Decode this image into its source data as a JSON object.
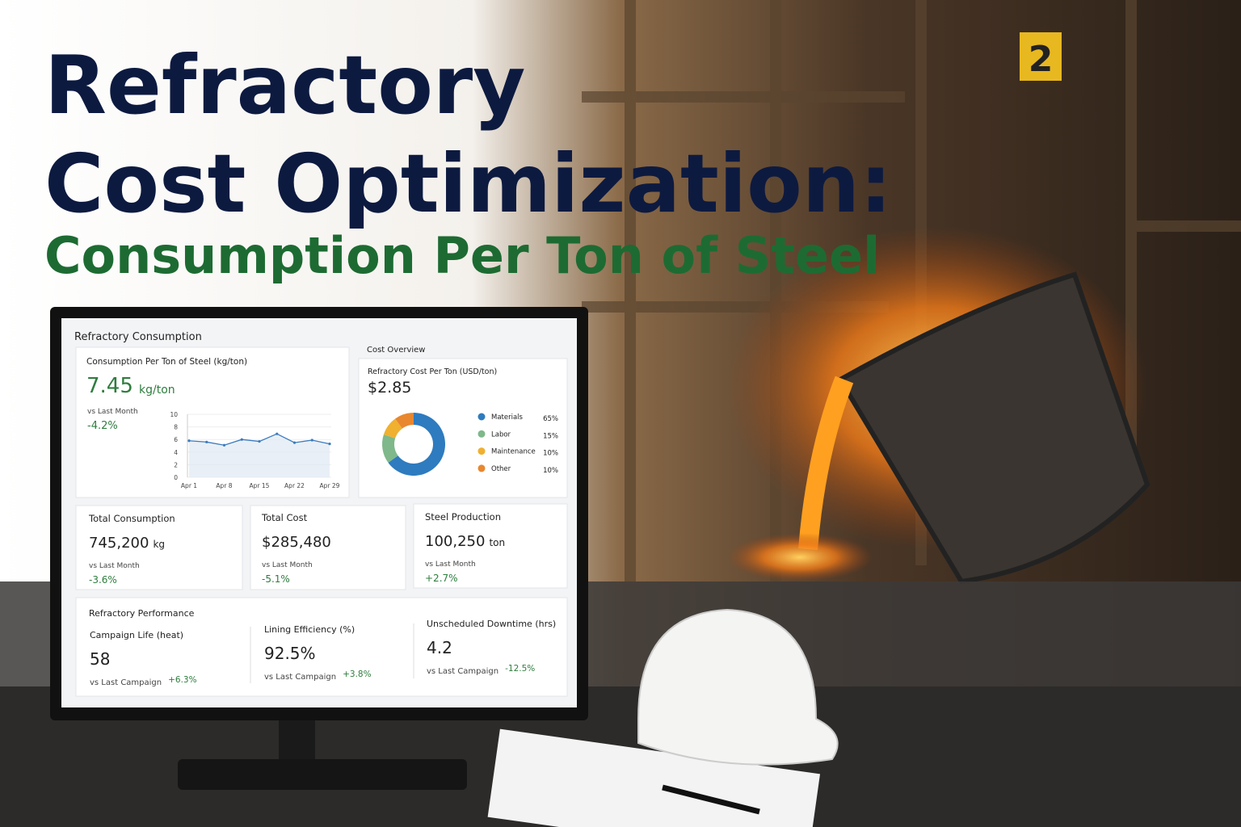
{
  "header": {
    "title_line1": "Refractory",
    "title_line2": "Cost Optimization:",
    "subtitle": "Consumption Per Ton of Steel"
  },
  "dashboard": {
    "title": "Refractory Consumption",
    "consumption": {
      "label": "Consumption Per Ton of Steel (kg/ton)",
      "value": "7.45",
      "unit": "kg/ton",
      "compare": "vs Last Month",
      "change": "-4.2%",
      "chart_data": {
        "type": "line",
        "categories": [
          "Apr 1",
          null,
          "Apr 8",
          null,
          "Apr 15",
          null,
          "Apr 22",
          null,
          "Apr 29"
        ],
        "values": [
          5.8,
          5.6,
          5.1,
          6.0,
          5.7,
          6.9,
          5.5,
          5.9,
          5.3
        ],
        "color": "#3b7bbf",
        "ylim": [
          0,
          10
        ],
        "yticks": [
          0,
          2,
          4,
          6,
          8,
          10
        ],
        "grid": true
      }
    },
    "cost_overview": {
      "title": "Cost Overview",
      "label": "Refractory Cost Per Ton (USD/ton)",
      "value": "$2.85",
      "chart_data": {
        "type": "pie",
        "categories": [
          "Materials",
          "Labor",
          "Maintenance",
          "Other"
        ],
        "values": [
          65,
          15,
          10,
          10
        ],
        "value_labels": [
          "65%",
          "15%",
          "10%",
          "10%"
        ],
        "colors": [
          "#2e7bbf",
          "#7fb88a",
          "#f0b030",
          "#e8872e"
        ]
      }
    },
    "kpis": [
      {
        "label": "Total Consumption",
        "value": "745,200",
        "unit": "kg",
        "compare": "vs Last Month",
        "change": "-3.6%"
      },
      {
        "label": "Total Cost",
        "value": "$285,480",
        "compare": "vs Last Month",
        "change": "-5.1%"
      },
      {
        "label": "Steel Production",
        "value": "100,250",
        "unit": "ton",
        "compare": "vs Last Month",
        "change": "+2.7%"
      }
    ],
    "performance": {
      "title": "Refractory Performance",
      "items": [
        {
          "label": "Campaign Life (heat)",
          "value": "58",
          "compare": "vs Last Campaign",
          "change": "+6.3%"
        },
        {
          "label": "Lining Efficiency (%)",
          "value": "92.5%",
          "compare": "vs Last Campaign",
          "change": "+3.8%"
        },
        {
          "label": "Unscheduled Downtime (hrs)",
          "value": "4.2",
          "compare": "vs Last Campaign",
          "change": "-12.5%"
        }
      ]
    }
  }
}
